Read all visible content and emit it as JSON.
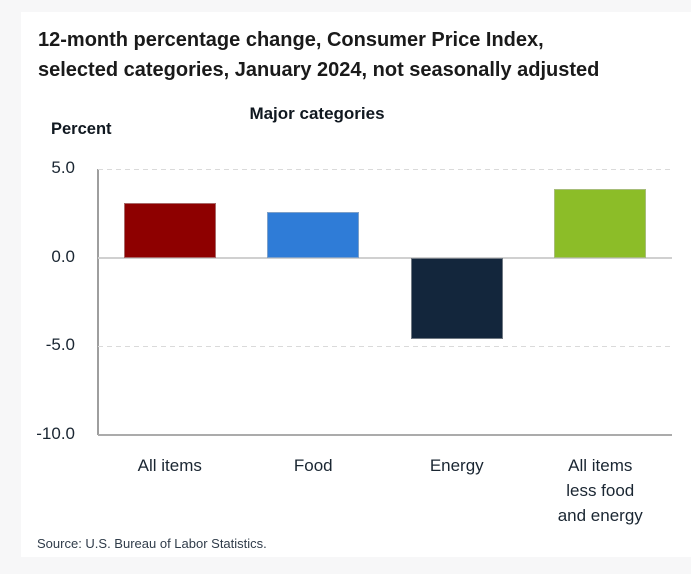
{
  "header": {
    "title_lines": [
      "12-month percentage change, Consumer Price Index,",
      "selected categories, January 2024, not seasonally adjusted"
    ]
  },
  "chart_data": {
    "type": "bar",
    "title": "Major categories",
    "ylabel": "Percent",
    "xlabel": "",
    "categories": [
      "All items",
      "Food",
      "Energy",
      "All items less food and energy"
    ],
    "category_label_lines": [
      [
        "All items"
      ],
      [
        "Food"
      ],
      [
        "Energy"
      ],
      [
        "All items",
        "less food",
        "and energy"
      ]
    ],
    "values": [
      3.1,
      2.6,
      -4.6,
      3.9
    ],
    "bar_colors": [
      "#8e0000",
      "#2f7cd7",
      "#13263c",
      "#8cbd28"
    ],
    "ylim": [
      -10.0,
      5.0
    ],
    "yticks": [
      5.0,
      0.0,
      -5.0,
      -10.0
    ],
    "ytick_labels": [
      "5.0",
      "0.0",
      "-5.0",
      "-10.0"
    ],
    "gridlines_dashed_at": [
      5.0,
      -5.0
    ],
    "zero_line_at": 0.0,
    "grid": "horizontal only",
    "legend_position": "none"
  },
  "footer": {
    "source": "Source: U.S. Bureau of Labor Statistics."
  }
}
